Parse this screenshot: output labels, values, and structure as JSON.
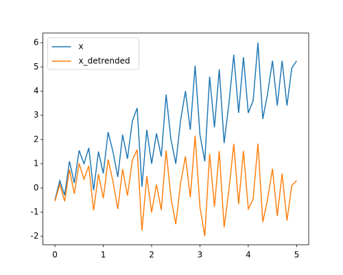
{
  "chart_data": {
    "type": "line",
    "x": [
      0,
      0.1,
      0.2,
      0.3,
      0.4,
      0.5,
      0.6,
      0.7,
      0.8,
      0.9,
      1,
      1.1,
      1.2,
      1.3,
      1.4,
      1.5,
      1.6,
      1.7,
      1.8,
      1.9,
      2,
      2.1,
      2.2,
      2.3,
      2.4,
      2.5,
      2.6,
      2.7,
      2.8,
      2.9,
      3,
      3.1,
      3.2,
      3.3,
      3.4,
      3.5,
      3.6,
      3.7,
      3.8,
      3.9,
      4,
      4.1,
      4.2,
      4.3,
      4.4,
      4.5,
      4.6,
      4.7,
      4.8,
      4.9,
      5
    ],
    "series": [
      {
        "name": "x",
        "color": "#1f77b4",
        "values": [
          -0.5,
          0.3,
          -0.3,
          1.1,
          0.2,
          1.55,
          1.0,
          1.65,
          -0.1,
          1.5,
          0.6,
          2.3,
          1.5,
          0.45,
          2.2,
          1.2,
          2.75,
          3.3,
          0.05,
          2.4,
          1.0,
          2.25,
          1.3,
          3.85,
          2.0,
          1.0,
          2.8,
          4.0,
          2.4,
          5.05,
          2.2,
          1.1,
          4.6,
          2.5,
          4.9,
          1.85,
          3.5,
          5.5,
          3.1,
          5.4,
          3.1,
          3.6,
          6.0,
          2.85,
          3.9,
          5.25,
          3.4,
          5.25,
          3.4,
          4.95,
          5.25
        ]
      },
      {
        "name": "x_detrended",
        "color": "#ff7f0e",
        "values": [
          -0.55,
          0.15,
          -0.55,
          0.76,
          -0.24,
          1.01,
          0.36,
          0.91,
          -0.93,
          0.57,
          -0.43,
          1.17,
          0.27,
          -0.87,
          0.78,
          -0.32,
          1.13,
          1.58,
          -1.76,
          0.49,
          -1.01,
          0.14,
          -0.91,
          1.55,
          -0.4,
          -1.5,
          0.2,
          1.3,
          -0.39,
          2.16,
          -0.79,
          -1.99,
          1.41,
          -0.78,
          1.52,
          -1.63,
          -0.08,
          1.82,
          -0.67,
          1.53,
          -0.87,
          -0.47,
          1.83,
          -1.41,
          -0.46,
          0.79,
          -1.16,
          0.59,
          -1.35,
          0.1,
          0.3
        ]
      }
    ],
    "xlim": [
      -0.25,
      5.25
    ],
    "xticks": [
      0,
      1,
      2,
      3,
      4,
      5
    ],
    "ylim": [
      -2.35,
      6.4
    ],
    "yticks": [
      -2,
      -1,
      0,
      1,
      2,
      3,
      4,
      5,
      6
    ],
    "legend": "upper left"
  }
}
